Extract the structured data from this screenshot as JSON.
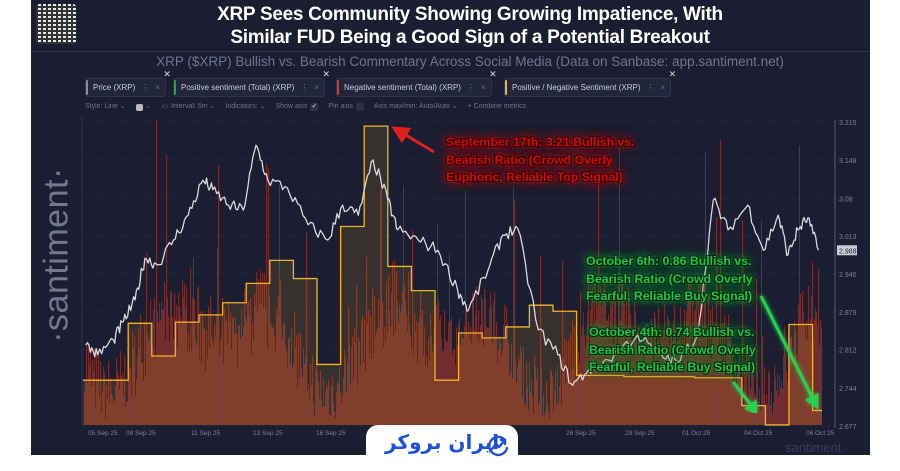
{
  "header": {
    "title_line1": "XRP Sees Community Showing Growing Impatience, With",
    "title_line2": "Similar FUD Being a Good Sign of a Potential Breakout",
    "subtitle": "XRP ($XRP) Bullish vs. Bearish Commentary Across Social Media (Data on Sanbase: app.santiment.net)"
  },
  "tabs": [
    {
      "label": "Price (XRP)",
      "color": "#8a8d9c"
    },
    {
      "label": "Positive sentiment (Total) (XRP)",
      "color": "#2f9e4a"
    },
    {
      "label": "Negative sentiment (Total) (XRP)",
      "color": "#d23a2e"
    },
    {
      "label": "Positive / Negative Sentiment (XRP)",
      "color": "#f0b429"
    }
  ],
  "toolbar": {
    "style": "Style: Line ⌄",
    "color_picker": "⌄",
    "interval": "Interval: 5m ⌄",
    "indicators": "Indicators: ⌄",
    "show_axis": "Show axis",
    "show_axis_checked": true,
    "pin_axis": "Pin axis",
    "pin_axis_checked": false,
    "axis_maxmin": "Axis max/min: Auto/Auto ⌄",
    "combine": "+ Combine metrics"
  },
  "watermark": "·santiment·",
  "watermark_small": "santiment",
  "logo_text": "ایران بروکر",
  "annotations": {
    "red": [
      "September 17th: 3.21 Bullish vs.",
      "Bearish Ratio (Crowd Overly",
      "Euphoric, Reliable Top Signal)"
    ],
    "green1": [
      "October 6th: 0.86 Bullish vs.",
      "Bearish Ratio (Crowd Overly",
      "Fearful, Reliable Buy Signal)"
    ],
    "green2": [
      "October 4th: 0.74 Bullish vs.",
      "Bearish Ratio (Crowd Overly",
      "Fearful, Reliable Buy Signal)"
    ]
  },
  "chart_data": {
    "type": "line",
    "x_tick_labels": [
      "05 Sep 25",
      "08 Sep 25",
      "11 Sep 25",
      "13 Sep 25",
      "16 Sep 25",
      "26 Sep 25",
      "29 Sep 25",
      "01 Oct 25",
      "04 Oct 25",
      "06 Oct 25"
    ],
    "y_axis_price": {
      "ticks": [
        "3.215",
        "3.148",
        "3.08",
        "3.013",
        "2.946",
        "2.879",
        "2.812",
        "2.744",
        "2.677"
      ],
      "range": [
        2.677,
        3.215
      ]
    },
    "current_price_label": "2.988",
    "grid": true,
    "colors": {
      "price": "#d9d9de",
      "ratio": "#f0b429",
      "positive": "#2f7d45",
      "negative": "#b8392c"
    },
    "series": [
      {
        "name": "Price (XRP)",
        "points": [
          [
            "Sep 05 05:00",
            2.82
          ],
          [
            "Sep 05 17:00",
            2.803
          ],
          [
            "Sep 06 09:00",
            2.829
          ],
          [
            "Sep 06 19:00",
            2.861
          ],
          [
            "Sep 07 07:00",
            2.9
          ],
          [
            "Sep 07 17:00",
            2.974
          ],
          [
            "Sep 08 06:00",
            2.962
          ],
          [
            "Sep 08 22:00",
            3.006
          ],
          [
            "Sep 09 13:00",
            3.05
          ],
          [
            "Sep 10 04:00",
            3.112
          ],
          [
            "Sep 10 14:00",
            3.095
          ],
          [
            "Sep 11 06:00",
            3.068
          ],
          [
            "Sep 11 21:00",
            3.059
          ],
          [
            "Sep 12 10:00",
            3.174
          ],
          [
            "Sep 12 22:00",
            3.112
          ],
          [
            "Sep 13 18:00",
            3.098
          ],
          [
            "Sep 14 15:00",
            3.033
          ],
          [
            "Sep 15 11:00",
            3.006
          ],
          [
            "Sep 16 02:00",
            3.068
          ],
          [
            "Sep 16 18:00",
            3.05
          ],
          [
            "Sep 17 09:00",
            3.148
          ],
          [
            "Sep 18 00:00",
            3.077
          ],
          [
            "Sep 18 10:00",
            3.024
          ],
          [
            "Sep 19 07:00",
            3.006
          ],
          [
            "Sep 20 03:00",
            2.988
          ],
          [
            "Sep 20 23:00",
            2.918
          ],
          [
            "Sep 21 10:00",
            2.882
          ],
          [
            "Sep 22 06:00",
            2.953
          ],
          [
            "Sep 22 21:00",
            3.015
          ],
          [
            "Sep 23 12:00",
            3.027
          ],
          [
            "Sep 24 09:00",
            2.847
          ],
          [
            "Sep 25 05:00",
            2.803
          ],
          [
            "Sep 25 20:00",
            2.749
          ],
          [
            "Sep 26 12:00",
            2.776
          ],
          [
            "Sep 27 08:00",
            2.794
          ],
          [
            "Sep 28 14:00",
            2.838
          ],
          [
            "Sep 29 11:00",
            2.803
          ],
          [
            "Sep 30 07:00",
            2.79
          ],
          [
            "Oct 01 03:00",
            2.838
          ],
          [
            "Oct 01 19:00",
            3.077
          ],
          [
            "Oct 02 10:00",
            3.024
          ],
          [
            "Oct 03 06:00",
            3.068
          ],
          [
            "Oct 03 22:00",
            2.988
          ],
          [
            "Oct 04 13:00",
            3.05
          ],
          [
            "Oct 04 23:00",
            2.98
          ],
          [
            "Oct 05 09:00",
            3.024
          ],
          [
            "Oct 05 19:00",
            3.045
          ],
          [
            "Oct 06 06:00",
            2.988
          ]
        ]
      },
      {
        "name": "Positive / Negative Sentiment (XRP)",
        "points": [
          [
            "Sep 05",
            1.11
          ],
          [
            "Sep 06",
            1.11
          ],
          [
            "Sep 07",
            1.58
          ],
          [
            "Sep 08",
            1.31
          ],
          [
            "Sep 09",
            1.59
          ],
          [
            "Sep 10",
            1.65
          ],
          [
            "Sep 11",
            1.75
          ],
          [
            "Sep 12",
            1.91
          ],
          [
            "Sep 13",
            2.1
          ],
          [
            "Sep 14",
            1.95
          ],
          [
            "Sep 15",
            1.24
          ],
          [
            "Sep 16",
            2.38
          ],
          [
            "Sep 17",
            3.21
          ],
          [
            "Sep 18",
            2.05
          ],
          [
            "Sep 19",
            1.85
          ],
          [
            "Sep 20",
            1.11
          ],
          [
            "Sep 21",
            1.5
          ],
          [
            "Sep 22",
            1.46
          ],
          [
            "Sep 23",
            1.55
          ],
          [
            "Sep 24",
            1.73
          ],
          [
            "Sep 25",
            1.68
          ],
          [
            "Sep 26",
            1.15
          ],
          [
            "Sep 27",
            1.15
          ],
          [
            "Sep 28",
            1.14
          ],
          [
            "Sep 29",
            1.14
          ],
          [
            "Sep 30",
            1.14
          ],
          [
            "Oct 01",
            1.13
          ],
          [
            "Oct 02",
            1.13
          ],
          [
            "Oct 03",
            0.9
          ],
          [
            "Oct 04",
            0.74
          ],
          [
            "Oct 05",
            1.57
          ],
          [
            "Oct 06",
            0.86
          ]
        ]
      }
    ]
  }
}
